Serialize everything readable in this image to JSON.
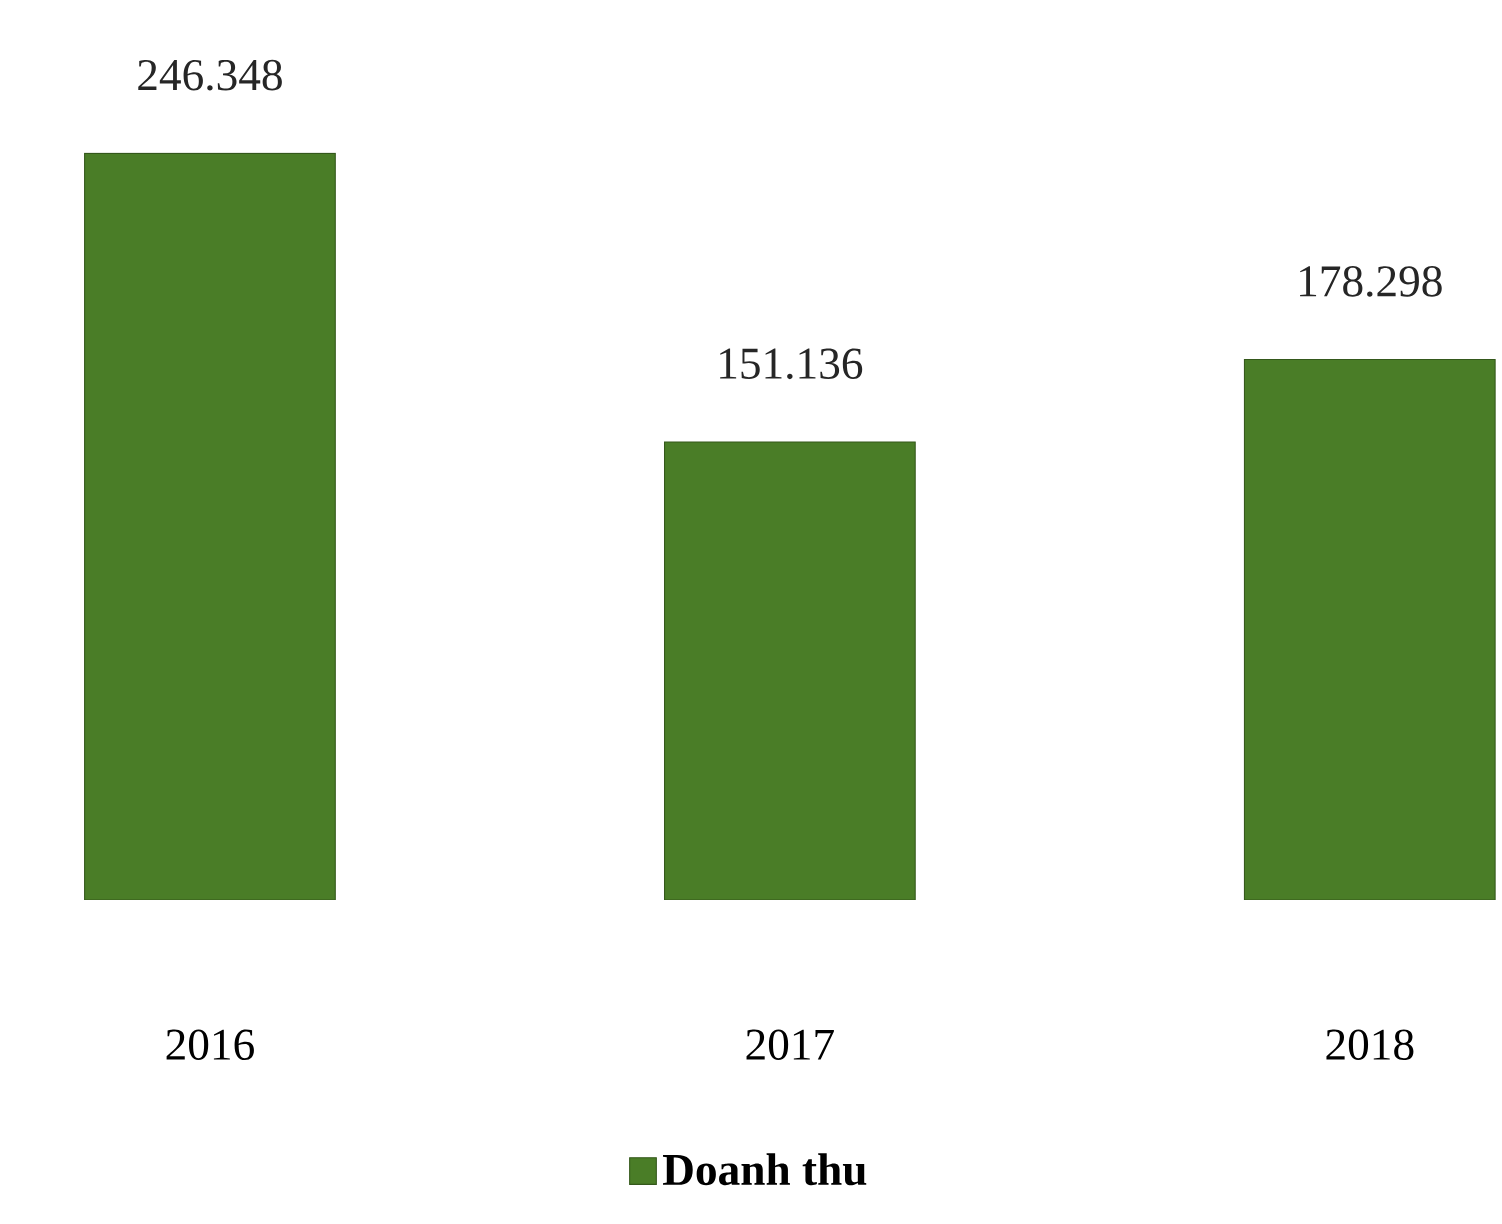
{
  "chart_data": {
    "type": "bar",
    "categories": [
      "2016",
      "2017",
      "2018"
    ],
    "series": [
      {
        "name": "Doanh thu",
        "color": "#4a7d27",
        "values": [
          246.348,
          151.136,
          178.298
        ]
      }
    ],
    "data_labels": true,
    "legend": "bottom"
  }
}
